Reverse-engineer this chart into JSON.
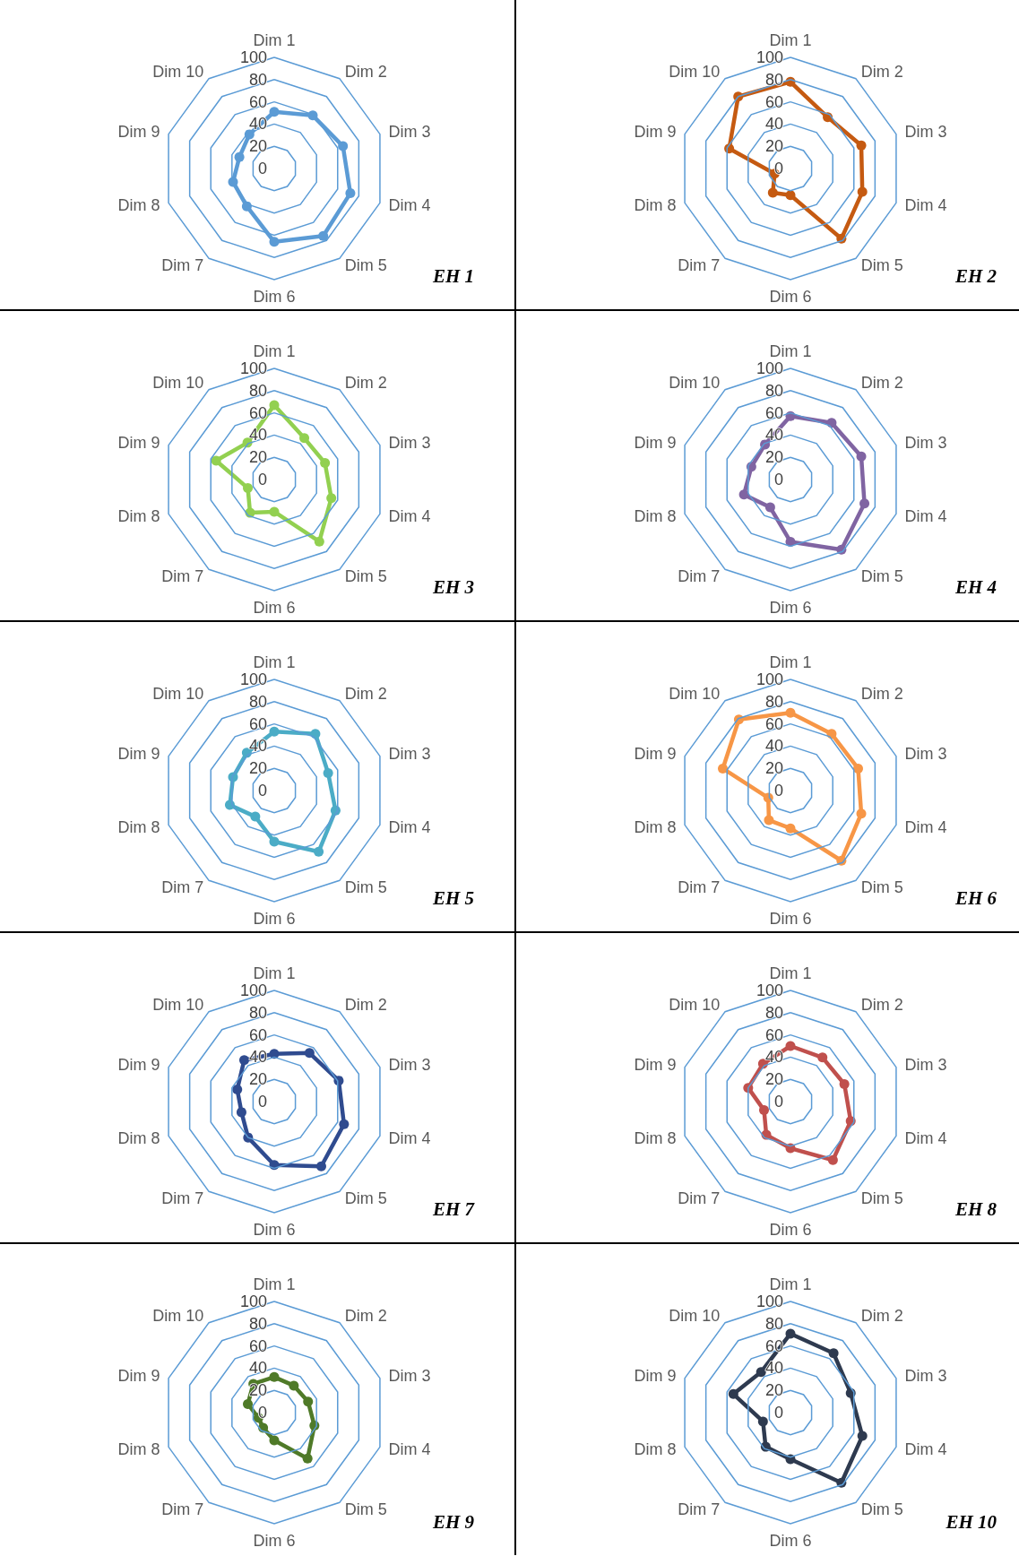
{
  "chart_data": [
    {
      "type": "radar",
      "title": "EH 1",
      "categories": [
        "Dim 1",
        "Dim 2",
        "Dim 3",
        "Dim 4",
        "Dim 5",
        "Dim 6",
        "Dim 7",
        "Dim 8",
        "Dim 9",
        "Dim 10"
      ],
      "series": [
        {
          "color": "#5b9bd5",
          "values": [
            51,
            59,
            65,
            72,
            75,
            66,
            42,
            39,
            33,
            38
          ]
        }
      ],
      "ylim": [
        0,
        100
      ],
      "yticks": [
        0,
        20,
        40,
        60,
        80,
        100
      ],
      "grid": true,
      "marker": "circle"
    },
    {
      "type": "radar",
      "title": "EH 2",
      "categories": [
        "Dim 1",
        "Dim 2",
        "Dim 3",
        "Dim 4",
        "Dim 5",
        "Dim 6",
        "Dim 7",
        "Dim 8",
        "Dim 9",
        "Dim 10"
      ],
      "series": [
        {
          "color": "#c55a11",
          "values": [
            78,
            57,
            67,
            68,
            78,
            24,
            27,
            15,
            58,
            80
          ]
        }
      ],
      "ylim": [
        0,
        100
      ],
      "yticks": [
        0,
        20,
        40,
        60,
        80,
        100
      ],
      "grid": true,
      "marker": "circle"
    },
    {
      "type": "radar",
      "title": "EH 3",
      "categories": [
        "Dim 1",
        "Dim 2",
        "Dim 3",
        "Dim 4",
        "Dim 5",
        "Dim 6",
        "Dim 7",
        "Dim 8",
        "Dim 9",
        "Dim 10"
      ],
      "series": [
        {
          "color": "#92d050",
          "values": [
            67,
            46,
            48,
            54,
            69,
            29,
            37,
            25,
            55,
            41
          ]
        }
      ],
      "ylim": [
        0,
        100
      ],
      "yticks": [
        0,
        20,
        40,
        60,
        80,
        100
      ],
      "grid": true,
      "marker": "circle"
    },
    {
      "type": "radar",
      "title": "EH 4",
      "categories": [
        "Dim 1",
        "Dim 2",
        "Dim 3",
        "Dim 4",
        "Dim 5",
        "Dim 6",
        "Dim 7",
        "Dim 8",
        "Dim 9",
        "Dim 10"
      ],
      "series": [
        {
          "color": "#8064a2",
          "values": [
            57,
            63,
            67,
            70,
            78,
            56,
            31,
            44,
            37,
            39
          ]
        }
      ],
      "ylim": [
        0,
        100
      ],
      "yticks": [
        0,
        20,
        40,
        60,
        80,
        100
      ],
      "grid": true,
      "marker": "circle"
    },
    {
      "type": "radar",
      "title": "EH 5",
      "categories": [
        "Dim 1",
        "Dim 2",
        "Dim 3",
        "Dim 4",
        "Dim 5",
        "Dim 6",
        "Dim 7",
        "Dim 8",
        "Dim 9",
        "Dim 10"
      ],
      "series": [
        {
          "color": "#4bacc6",
          "values": [
            53,
            63,
            51,
            58,
            68,
            46,
            29,
            42,
            39,
            42
          ]
        }
      ],
      "ylim": [
        0,
        100
      ],
      "yticks": [
        0,
        20,
        40,
        60,
        80,
        100
      ],
      "grid": true,
      "marker": "circle"
    },
    {
      "type": "radar",
      "title": "EH 6",
      "categories": [
        "Dim 1",
        "Dim 2",
        "Dim 3",
        "Dim 4",
        "Dim 5",
        "Dim 6",
        "Dim 7",
        "Dim 8",
        "Dim 9",
        "Dim 10"
      ],
      "series": [
        {
          "color": "#f79646",
          "values": [
            70,
            63,
            64,
            67,
            78,
            34,
            33,
            21,
            64,
            79
          ]
        }
      ],
      "ylim": [
        0,
        100
      ],
      "yticks": [
        0,
        20,
        40,
        60,
        80,
        100
      ],
      "grid": true,
      "marker": "circle"
    },
    {
      "type": "radar",
      "title": "EH 7",
      "categories": [
        "Dim 1",
        "Dim 2",
        "Dim 3",
        "Dim 4",
        "Dim 5",
        "Dim 6",
        "Dim 7",
        "Dim 8",
        "Dim 9",
        "Dim 10"
      ],
      "series": [
        {
          "color": "#2f4b8f",
          "values": [
            43,
            54,
            61,
            66,
            72,
            57,
            40,
            31,
            35,
            46
          ]
        }
      ],
      "ylim": [
        0,
        100
      ],
      "yticks": [
        0,
        20,
        40,
        60,
        80,
        100
      ],
      "grid": true,
      "marker": "circle"
    },
    {
      "type": "radar",
      "title": "EH 8",
      "categories": [
        "Dim 1",
        "Dim 2",
        "Dim 3",
        "Dim 4",
        "Dim 5",
        "Dim 6",
        "Dim 7",
        "Dim 8",
        "Dim 9",
        "Dim 10"
      ],
      "series": [
        {
          "color": "#c0504d",
          "values": [
            50,
            49,
            51,
            57,
            65,
            42,
            37,
            25,
            40,
            42
          ]
        }
      ],
      "ylim": [
        0,
        100
      ],
      "yticks": [
        0,
        20,
        40,
        60,
        80,
        100
      ],
      "grid": true,
      "marker": "circle"
    },
    {
      "type": "radar",
      "title": "EH 9",
      "categories": [
        "Dim 1",
        "Dim 2",
        "Dim 3",
        "Dim 4",
        "Dim 5",
        "Dim 6",
        "Dim 7",
        "Dim 8",
        "Dim 9",
        "Dim 10"
      ],
      "series": [
        {
          "color": "#4f7a28",
          "values": [
            32,
            30,
            32,
            38,
            51,
            25,
            17,
            15,
            25,
            32
          ]
        }
      ],
      "ylim": [
        0,
        100
      ],
      "yticks": [
        0,
        20,
        40,
        60,
        80,
        100
      ],
      "grid": true,
      "marker": "circle"
    },
    {
      "type": "radar",
      "title": "EH 10",
      "categories": [
        "Dim 1",
        "Dim 2",
        "Dim 3",
        "Dim 4",
        "Dim 5",
        "Dim 6",
        "Dim 7",
        "Dim 8",
        "Dim 9",
        "Dim 10"
      ],
      "series": [
        {
          "color": "#2e3a4f",
          "values": [
            71,
            66,
            57,
            68,
            78,
            42,
            38,
            26,
            54,
            45
          ]
        }
      ],
      "ylim": [
        0,
        100
      ],
      "yticks": [
        0,
        20,
        40,
        60,
        80,
        100
      ],
      "grid": true,
      "marker": "circle"
    }
  ]
}
